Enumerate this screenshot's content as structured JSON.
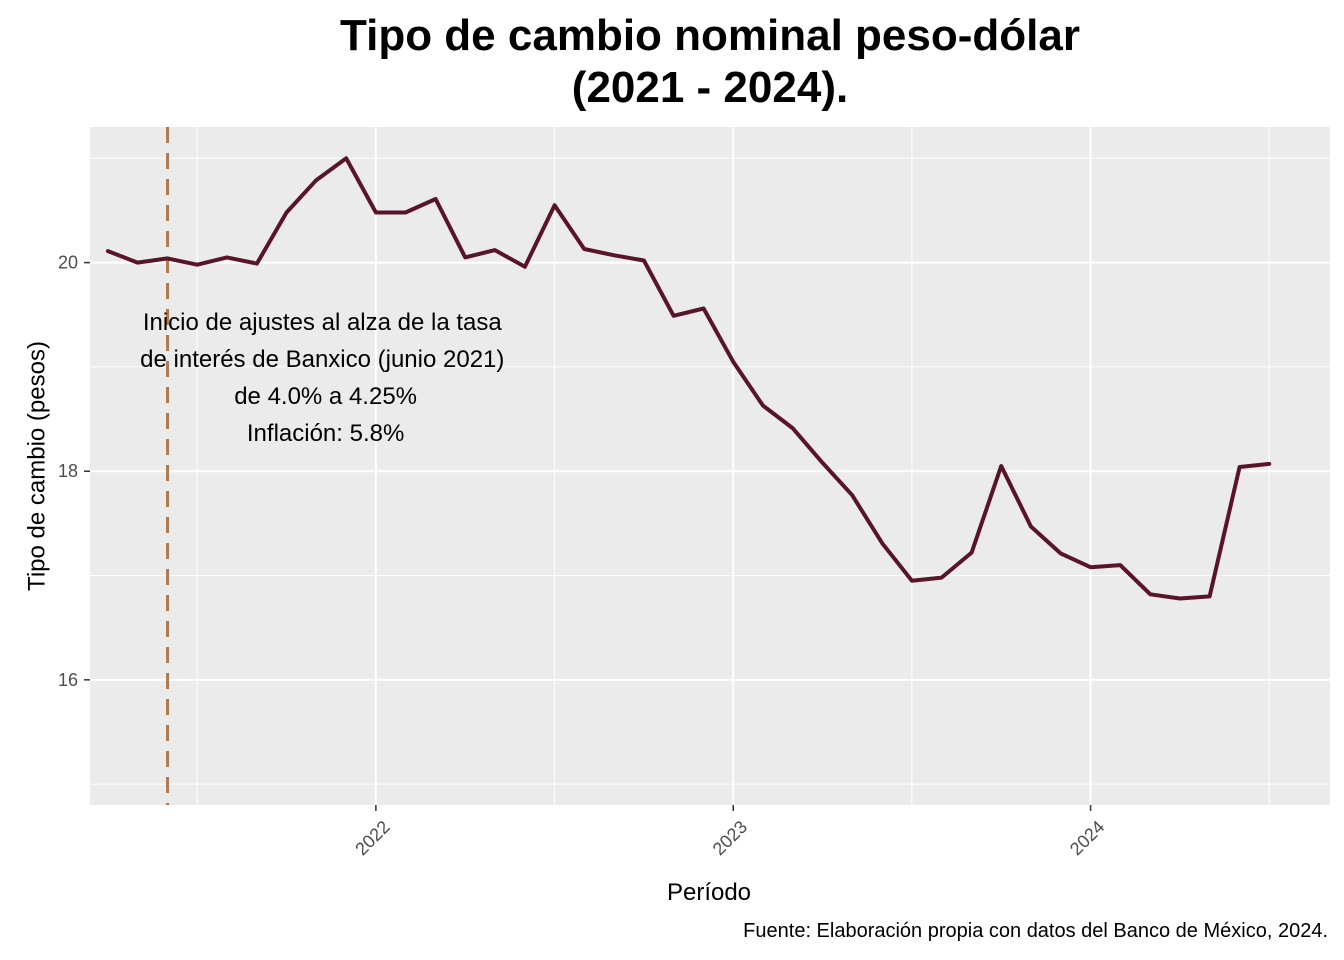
{
  "chart_data": {
    "type": "line",
    "title_line1": "Tipo de cambio nominal peso-dólar",
    "title_line2": "(2021 - 2024).",
    "xlabel": "Período",
    "ylabel": "Tipo de cambio (pesos)",
    "caption": "Fuente: Elaboración propia con datos del Banco de México, 2024.",
    "ylim": [
      14.8,
      21.3
    ],
    "xlim": [
      2021.2,
      2024.67
    ],
    "yticks": [
      16,
      18,
      20
    ],
    "ytick_labels": [
      "16",
      "18",
      "20"
    ],
    "xticks": [
      2022,
      2023,
      2024
    ],
    "xtick_labels": [
      "2022",
      "2023",
      "2024"
    ],
    "vline": {
      "x": 2021.417,
      "color": "#b07a4f",
      "style": "dashed"
    },
    "annotation": [
      "Inicio de ajustes al alza de la tasa",
      "de interés de Banxico (junio 2021)",
      " de 4.0% a 4.25%",
      " Inflación: 5.8%"
    ],
    "annotation_anchor": {
      "x": 2021.85,
      "y": 18.9
    },
    "line_color": "#5a1428",
    "series": [
      {
        "name": "Tipo de cambio",
        "x": [
          2021.25,
          2021.333,
          2021.417,
          2021.5,
          2021.583,
          2021.667,
          2021.75,
          2021.833,
          2021.917,
          2022.0,
          2022.083,
          2022.167,
          2022.25,
          2022.333,
          2022.417,
          2022.5,
          2022.583,
          2022.667,
          2022.75,
          2022.833,
          2022.917,
          2023.0,
          2023.083,
          2023.167,
          2023.25,
          2023.333,
          2023.417,
          2023.5,
          2023.583,
          2023.667,
          2023.75,
          2023.833,
          2023.917,
          2024.0,
          2024.083,
          2024.167,
          2024.25,
          2024.333,
          2024.417,
          2024.5
        ],
        "values": [
          20.11,
          20.0,
          20.04,
          19.98,
          20.05,
          19.99,
          20.48,
          20.79,
          21.0,
          20.48,
          20.48,
          20.61,
          20.05,
          20.12,
          19.96,
          20.55,
          20.13,
          20.07,
          20.02,
          19.49,
          19.56,
          19.05,
          18.63,
          18.41,
          18.08,
          17.77,
          17.31,
          16.95,
          16.98,
          17.22,
          18.05,
          17.47,
          17.21,
          17.08,
          17.1,
          16.82,
          16.78,
          16.8,
          18.04,
          18.07
        ]
      }
    ]
  }
}
